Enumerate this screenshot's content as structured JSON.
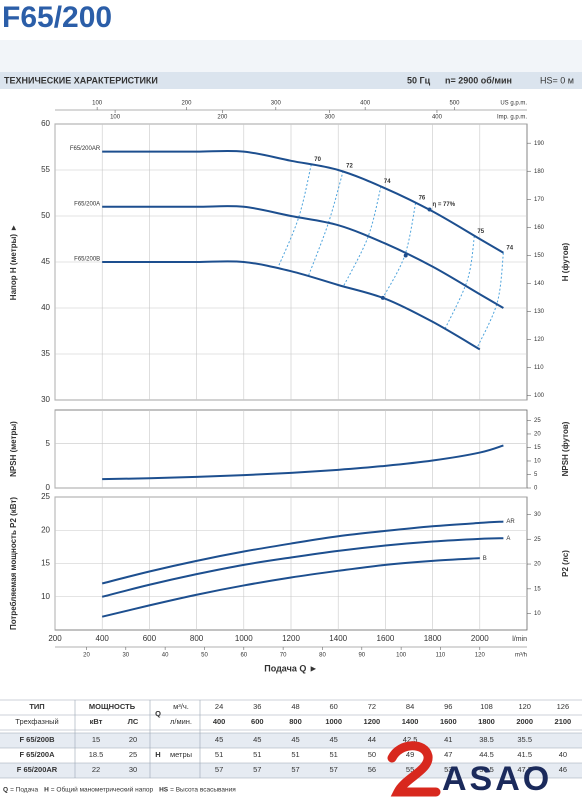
{
  "title": "F65/200",
  "banner": {
    "heading": "ТЕХНИЧЕСКИЕ ХАРАКТЕРИСТИКИ",
    "frequency": "50 Гц",
    "speed": "n= 2900 об/мин",
    "suction": "HS= 0 м"
  },
  "chart_data": [
    {
      "type": "line",
      "ylabel": "Напор H (метры) ►",
      "y2label": "H (футов)",
      "x": [
        400,
        600,
        800,
        1000,
        1200,
        1400,
        1600,
        1800,
        2000,
        2100
      ],
      "xlim": [
        200,
        2200
      ],
      "xticks": [
        200,
        400,
        600,
        800,
        1000,
        1200,
        1400,
        1600,
        1800,
        2000
      ],
      "top_axes": [
        {
          "label": "US g.p.m.",
          "lim": [
            52.83,
            581.17
          ],
          "ticks": [
            100,
            200,
            300,
            400,
            500
          ]
        },
        {
          "label": "Imp. g.p.m.",
          "lim": [
            43.99,
            483.93
          ],
          "ticks": [
            100,
            200,
            300,
            400
          ]
        }
      ],
      "ylim": [
        30,
        60
      ],
      "yticks": [
        30,
        35,
        40,
        45,
        50,
        55,
        60
      ],
      "y2lim": [
        98.43,
        196.85
      ],
      "y2ticks": [
        100,
        110,
        120,
        130,
        140,
        150,
        160,
        170,
        180,
        190
      ],
      "grid": true,
      "series_label_position": "start",
      "series": [
        {
          "name": "F65/200AR",
          "color": "#1d4f8f",
          "values": [
            57,
            57,
            57,
            57,
            56,
            55,
            53,
            50.5,
            47.5,
            46
          ]
        },
        {
          "name": "F65/200A",
          "color": "#1d4f8f",
          "values": [
            51,
            51,
            51,
            51,
            50,
            49,
            47,
            44.5,
            41.5,
            40
          ]
        },
        {
          "name": "F65/200B",
          "color": "#1d4f8f",
          "values": [
            45,
            45,
            45,
            45,
            44,
            42.5,
            41,
            38.5,
            35.5,
            null
          ]
        }
      ],
      "efficiency_color": "#4da3dc",
      "efficiency": [
        {
          "name": "70",
          "x": [
            1286,
            1232,
            1143
          ],
          "values": [
            55.6,
            49.8,
            44.3
          ]
        },
        {
          "name": "72",
          "x": [
            1421,
            1358,
            1274
          ],
          "values": [
            54.9,
            49.2,
            43.5
          ]
        },
        {
          "name": "74",
          "x": [
            1581,
            1526,
            1421
          ],
          "values": [
            53.2,
            47.7,
            42.3
          ]
        },
        {
          "name": "76",
          "x": [
            1728,
            1682,
            1589
          ],
          "values": [
            51.4,
            45.7,
            41.1
          ]
        },
        {
          "name": "η = 77%",
          "x": [
            1787,
            1686,
            1589
          ],
          "values": [
            50.7,
            45.7,
            41.1
          ],
          "line": false
        },
        {
          "name": "75",
          "x": [
            1977,
            1947,
            1850
          ],
          "values": [
            47.8,
            43.0,
            37.6
          ]
        },
        {
          "name": "74",
          "x": [
            2100,
            2074,
            1989
          ],
          "values": [
            46,
            40.6,
            35.7
          ]
        }
      ]
    },
    {
      "type": "line",
      "ylabel": "NPSH (метры)",
      "y2label": "NPSH (футов)",
      "x": [
        400,
        600,
        800,
        1000,
        1200,
        1400,
        1600,
        1800,
        2000,
        2100
      ],
      "xlim": [
        200,
        2200
      ],
      "xticks": [
        200,
        400,
        600,
        800,
        1000,
        1200,
        1400,
        1600,
        1800,
        2000
      ],
      "ylim": [
        0,
        8.8
      ],
      "yticks": [
        0,
        5
      ],
      "y2lim": [
        0,
        28.87
      ],
      "y2ticks": [
        0,
        5,
        10,
        15,
        20,
        25
      ],
      "grid": true,
      "series": [
        {
          "color": "#1d4f8f",
          "values": [
            1.0,
            1.1,
            1.25,
            1.45,
            1.7,
            2.05,
            2.5,
            3.1,
            4.0,
            4.8
          ]
        }
      ]
    },
    {
      "type": "line",
      "ylabel": "Потребляемая мощность P2 (кВт)",
      "y2label": "P2 (лс)",
      "xlabel": "Подача Q ►",
      "xunit": "l/min",
      "x": [
        400,
        600,
        800,
        1000,
        1200,
        1400,
        1600,
        1800,
        2000,
        2100
      ],
      "xlim": [
        200,
        2200
      ],
      "xticks": [
        200,
        400,
        600,
        800,
        1000,
        1200,
        1400,
        1600,
        1800,
        2000
      ],
      "bottom_axis2": {
        "label": "m³/h",
        "lim": [
          12,
          132
        ],
        "ticks": [
          20,
          30,
          40,
          50,
          60,
          70,
          80,
          90,
          100,
          110,
          120
        ]
      },
      "ylim": [
        5,
        25
      ],
      "yticks": [
        10,
        15,
        20,
        25
      ],
      "y2lim": [
        6.7,
        33.52
      ],
      "y2ticks": [
        10,
        15,
        20,
        25,
        30
      ],
      "grid": true,
      "series_label_position": "end",
      "series": [
        {
          "name": "AR",
          "color": "#1d4f8f",
          "values": [
            12,
            13.8,
            15.4,
            16.8,
            18.0,
            19.1,
            19.9,
            20.6,
            21.1,
            21.3
          ]
        },
        {
          "name": "A",
          "color": "#1d4f8f",
          "values": [
            10,
            11.8,
            13.4,
            14.8,
            15.9,
            16.9,
            17.7,
            18.3,
            18.7,
            18.8
          ]
        },
        {
          "name": "B",
          "color": "#1d4f8f",
          "values": [
            7,
            8.7,
            10.3,
            11.7,
            12.9,
            13.9,
            14.8,
            15.4,
            15.8,
            null
          ]
        }
      ]
    }
  ],
  "table": {
    "type_header": "ТИП",
    "power_header": "МОЩНОСТЬ",
    "q_header": "Q",
    "m3h_unit": "м³/ч.",
    "lmin_unit": "л/мин.",
    "phase": "Трехфазный",
    "kw": "кВт",
    "hp": "ЛС",
    "h_header": "H",
    "h_unit": "метры",
    "m3h": [
      24,
      36,
      48,
      60,
      72,
      84,
      96,
      108,
      120,
      126
    ],
    "rows": [
      [
        "F 65/200B",
        15,
        20
      ],
      [
        "F 65/200A",
        18.5,
        25
      ],
      [
        "F 65/200AR",
        22,
        30
      ]
    ]
  },
  "footer": [
    {
      "term": "Q",
      "desc": "= Подача"
    },
    {
      "term": "H",
      "desc": "= Общий манометрический напор"
    },
    {
      "term": "HS",
      "desc": "= Высота всасывания"
    }
  ],
  "logo": "ASAO"
}
